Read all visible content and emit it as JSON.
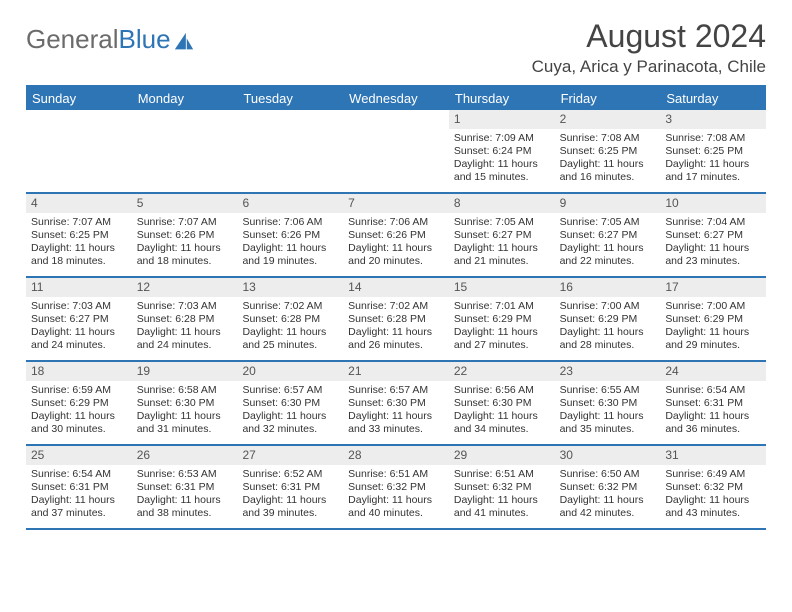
{
  "logo": {
    "text1": "General",
    "text2": "Blue"
  },
  "title": "August 2024",
  "location": "Cuya, Arica y Parinacota, Chile",
  "colors": {
    "accent": "#2e75b6",
    "header_text": "#ffffff",
    "daynum_bg": "#ededed",
    "text": "#333333",
    "logo_gray": "#6b6b6b"
  },
  "day_names": [
    "Sunday",
    "Monday",
    "Tuesday",
    "Wednesday",
    "Thursday",
    "Friday",
    "Saturday"
  ],
  "weeks": [
    [
      null,
      null,
      null,
      null,
      {
        "n": "1",
        "sunrise": "7:09 AM",
        "sunset": "6:24 PM",
        "daylight": "11 hours and 15 minutes."
      },
      {
        "n": "2",
        "sunrise": "7:08 AM",
        "sunset": "6:25 PM",
        "daylight": "11 hours and 16 minutes."
      },
      {
        "n": "3",
        "sunrise": "7:08 AM",
        "sunset": "6:25 PM",
        "daylight": "11 hours and 17 minutes."
      }
    ],
    [
      {
        "n": "4",
        "sunrise": "7:07 AM",
        "sunset": "6:25 PM",
        "daylight": "11 hours and 18 minutes."
      },
      {
        "n": "5",
        "sunrise": "7:07 AM",
        "sunset": "6:26 PM",
        "daylight": "11 hours and 18 minutes."
      },
      {
        "n": "6",
        "sunrise": "7:06 AM",
        "sunset": "6:26 PM",
        "daylight": "11 hours and 19 minutes."
      },
      {
        "n": "7",
        "sunrise": "7:06 AM",
        "sunset": "6:26 PM",
        "daylight": "11 hours and 20 minutes."
      },
      {
        "n": "8",
        "sunrise": "7:05 AM",
        "sunset": "6:27 PM",
        "daylight": "11 hours and 21 minutes."
      },
      {
        "n": "9",
        "sunrise": "7:05 AM",
        "sunset": "6:27 PM",
        "daylight": "11 hours and 22 minutes."
      },
      {
        "n": "10",
        "sunrise": "7:04 AM",
        "sunset": "6:27 PM",
        "daylight": "11 hours and 23 minutes."
      }
    ],
    [
      {
        "n": "11",
        "sunrise": "7:03 AM",
        "sunset": "6:27 PM",
        "daylight": "11 hours and 24 minutes."
      },
      {
        "n": "12",
        "sunrise": "7:03 AM",
        "sunset": "6:28 PM",
        "daylight": "11 hours and 24 minutes."
      },
      {
        "n": "13",
        "sunrise": "7:02 AM",
        "sunset": "6:28 PM",
        "daylight": "11 hours and 25 minutes."
      },
      {
        "n": "14",
        "sunrise": "7:02 AM",
        "sunset": "6:28 PM",
        "daylight": "11 hours and 26 minutes."
      },
      {
        "n": "15",
        "sunrise": "7:01 AM",
        "sunset": "6:29 PM",
        "daylight": "11 hours and 27 minutes."
      },
      {
        "n": "16",
        "sunrise": "7:00 AM",
        "sunset": "6:29 PM",
        "daylight": "11 hours and 28 minutes."
      },
      {
        "n": "17",
        "sunrise": "7:00 AM",
        "sunset": "6:29 PM",
        "daylight": "11 hours and 29 minutes."
      }
    ],
    [
      {
        "n": "18",
        "sunrise": "6:59 AM",
        "sunset": "6:29 PM",
        "daylight": "11 hours and 30 minutes."
      },
      {
        "n": "19",
        "sunrise": "6:58 AM",
        "sunset": "6:30 PM",
        "daylight": "11 hours and 31 minutes."
      },
      {
        "n": "20",
        "sunrise": "6:57 AM",
        "sunset": "6:30 PM",
        "daylight": "11 hours and 32 minutes."
      },
      {
        "n": "21",
        "sunrise": "6:57 AM",
        "sunset": "6:30 PM",
        "daylight": "11 hours and 33 minutes."
      },
      {
        "n": "22",
        "sunrise": "6:56 AM",
        "sunset": "6:30 PM",
        "daylight": "11 hours and 34 minutes."
      },
      {
        "n": "23",
        "sunrise": "6:55 AM",
        "sunset": "6:30 PM",
        "daylight": "11 hours and 35 minutes."
      },
      {
        "n": "24",
        "sunrise": "6:54 AM",
        "sunset": "6:31 PM",
        "daylight": "11 hours and 36 minutes."
      }
    ],
    [
      {
        "n": "25",
        "sunrise": "6:54 AM",
        "sunset": "6:31 PM",
        "daylight": "11 hours and 37 minutes."
      },
      {
        "n": "26",
        "sunrise": "6:53 AM",
        "sunset": "6:31 PM",
        "daylight": "11 hours and 38 minutes."
      },
      {
        "n": "27",
        "sunrise": "6:52 AM",
        "sunset": "6:31 PM",
        "daylight": "11 hours and 39 minutes."
      },
      {
        "n": "28",
        "sunrise": "6:51 AM",
        "sunset": "6:32 PM",
        "daylight": "11 hours and 40 minutes."
      },
      {
        "n": "29",
        "sunrise": "6:51 AM",
        "sunset": "6:32 PM",
        "daylight": "11 hours and 41 minutes."
      },
      {
        "n": "30",
        "sunrise": "6:50 AM",
        "sunset": "6:32 PM",
        "daylight": "11 hours and 42 minutes."
      },
      {
        "n": "31",
        "sunrise": "6:49 AM",
        "sunset": "6:32 PM",
        "daylight": "11 hours and 43 minutes."
      }
    ]
  ],
  "labels": {
    "sunrise_prefix": "Sunrise: ",
    "sunset_prefix": "Sunset: ",
    "daylight_prefix": "Daylight: "
  }
}
